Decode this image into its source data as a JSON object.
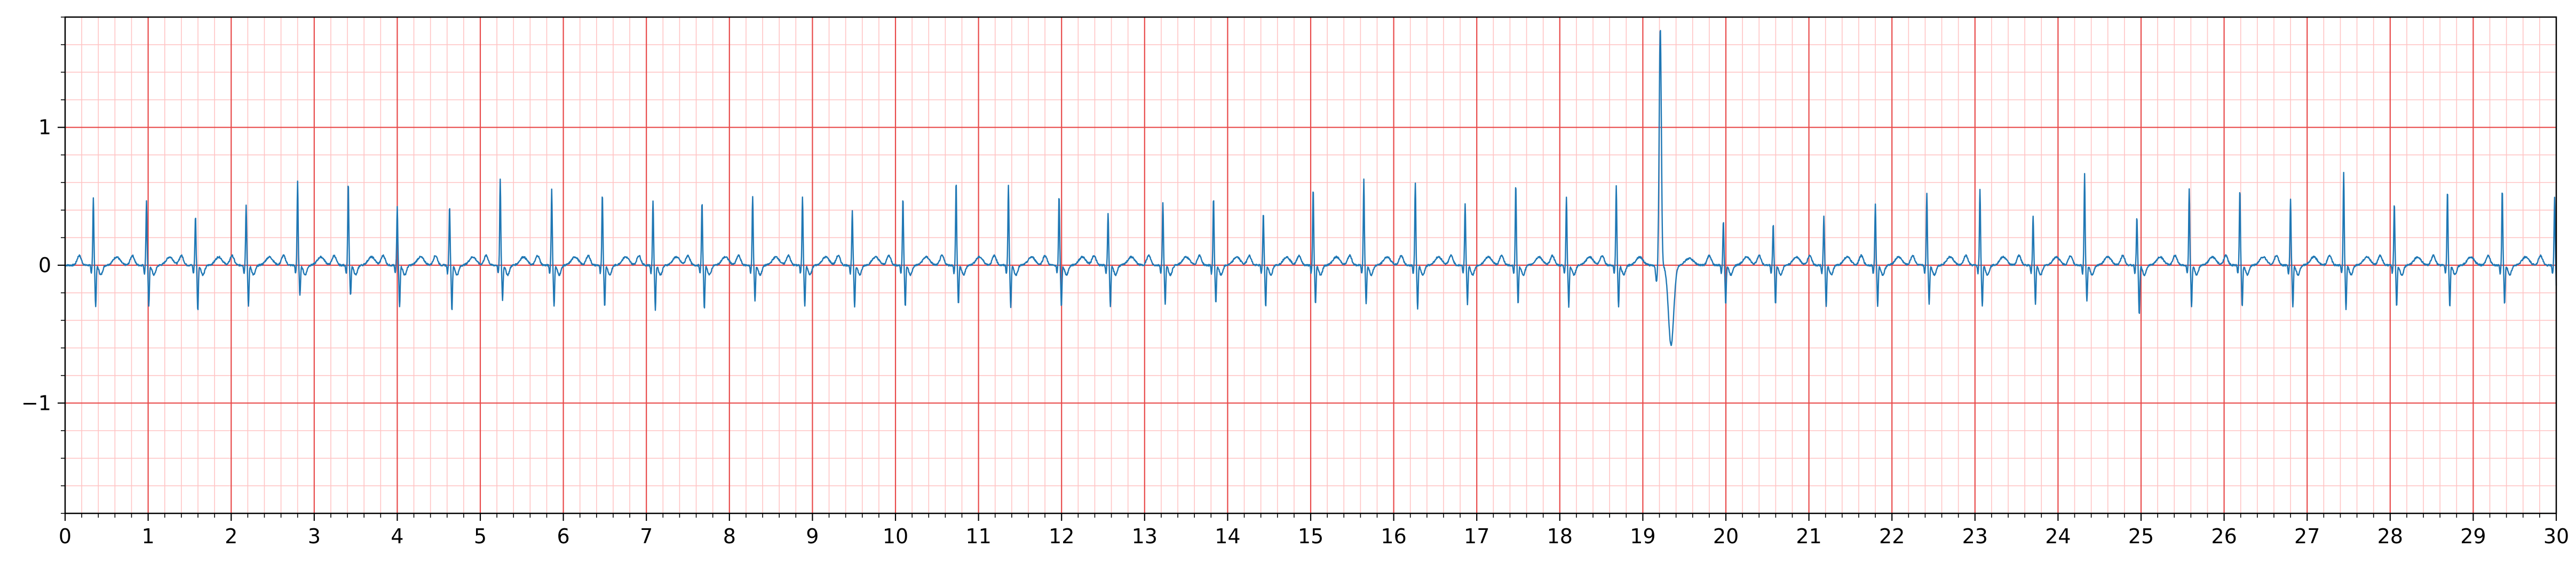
{
  "chart_data": {
    "type": "line",
    "title": "",
    "xlabel": "",
    "ylabel": "",
    "xlim": [
      0,
      30
    ],
    "ylim": [
      -1.8,
      1.8
    ],
    "grid": {
      "on": true,
      "major_color": "#e84a4a",
      "minor_color": "#ffc4c4",
      "x_major_step": 1,
      "x_minor_step": 0.2,
      "y_major_step": 1,
      "y_minor_step": 0.2
    },
    "x_ticks": [
      {
        "value": 0,
        "label": "0"
      },
      {
        "value": 1,
        "label": "1"
      },
      {
        "value": 2,
        "label": "2"
      },
      {
        "value": 3,
        "label": "3"
      },
      {
        "value": 4,
        "label": "4"
      },
      {
        "value": 5,
        "label": "5"
      },
      {
        "value": 6,
        "label": "6"
      },
      {
        "value": 7,
        "label": "7"
      },
      {
        "value": 8,
        "label": "8"
      },
      {
        "value": 9,
        "label": "9"
      },
      {
        "value": 10,
        "label": "10"
      },
      {
        "value": 11,
        "label": "11"
      },
      {
        "value": 12,
        "label": "12"
      },
      {
        "value": 13,
        "label": "13"
      },
      {
        "value": 14,
        "label": "14"
      },
      {
        "value": 15,
        "label": "15"
      },
      {
        "value": 16,
        "label": "16"
      },
      {
        "value": 17,
        "label": "17"
      },
      {
        "value": 18,
        "label": "18"
      },
      {
        "value": 19,
        "label": "19"
      },
      {
        "value": 20,
        "label": "20"
      },
      {
        "value": 21,
        "label": "21"
      },
      {
        "value": 22,
        "label": "22"
      },
      {
        "value": 23,
        "label": "23"
      },
      {
        "value": 24,
        "label": "24"
      },
      {
        "value": 25,
        "label": "25"
      },
      {
        "value": 26,
        "label": "26"
      },
      {
        "value": 27,
        "label": "27"
      },
      {
        "value": 28,
        "label": "28"
      },
      {
        "value": 29,
        "label": "29"
      },
      {
        "value": 30,
        "label": "30"
      }
    ],
    "y_ticks": [
      {
        "value": 1,
        "label": "1"
      },
      {
        "value": 0,
        "label": "0"
      },
      {
        "value": -1,
        "label": "−1"
      }
    ],
    "series": [
      {
        "color": "#1f77b4",
        "baseline": 0.0,
        "beats": [
          {
            "t": 0.34,
            "r": 0.49,
            "s": -0.3
          },
          {
            "t": 0.98,
            "r": 0.47,
            "s": -0.3
          },
          {
            "t": 1.57,
            "r": 0.36,
            "s": -0.33
          },
          {
            "t": 2.18,
            "r": 0.44,
            "s": -0.3
          },
          {
            "t": 2.8,
            "r": 0.61,
            "s": -0.22
          },
          {
            "t": 3.41,
            "r": 0.6,
            "s": -0.22
          },
          {
            "t": 4.0,
            "r": 0.42,
            "s": -0.3
          },
          {
            "t": 4.63,
            "r": 0.43,
            "s": -0.33
          },
          {
            "t": 5.24,
            "r": 0.62,
            "s": -0.25
          },
          {
            "t": 5.86,
            "r": 0.55,
            "s": -0.3
          },
          {
            "t": 6.47,
            "r": 0.52,
            "s": -0.3
          },
          {
            "t": 7.08,
            "r": 0.47,
            "s": -0.32
          },
          {
            "t": 7.67,
            "r": 0.46,
            "s": -0.32
          },
          {
            "t": 8.28,
            "r": 0.5,
            "s": -0.26
          },
          {
            "t": 8.88,
            "r": 0.5,
            "s": -0.3
          },
          {
            "t": 9.48,
            "r": 0.39,
            "s": -0.3
          },
          {
            "t": 10.09,
            "r": 0.49,
            "s": -0.3
          },
          {
            "t": 10.73,
            "r": 0.61,
            "s": -0.28
          },
          {
            "t": 11.36,
            "r": 0.58,
            "s": -0.3
          },
          {
            "t": 11.97,
            "r": 0.51,
            "s": -0.3
          },
          {
            "t": 12.56,
            "r": 0.38,
            "s": -0.3
          },
          {
            "t": 13.22,
            "r": 0.45,
            "s": -0.28
          },
          {
            "t": 13.83,
            "r": 0.49,
            "s": -0.28
          },
          {
            "t": 14.43,
            "r": 0.38,
            "s": -0.3
          },
          {
            "t": 15.03,
            "r": 0.56,
            "s": -0.28
          },
          {
            "t": 15.64,
            "r": 0.63,
            "s": -0.28
          },
          {
            "t": 16.26,
            "r": 0.6,
            "s": -0.32
          },
          {
            "t": 16.86,
            "r": 0.45,
            "s": -0.28
          },
          {
            "t": 17.47,
            "r": 0.59,
            "s": -0.28
          },
          {
            "t": 18.08,
            "r": 0.49,
            "s": -0.3
          },
          {
            "t": 18.68,
            "r": 0.58,
            "s": -0.3
          },
          {
            "t": 19.21,
            "r": 1.72,
            "s": -0.58,
            "wide": true
          },
          {
            "t": 19.97,
            "r": 0.32,
            "s": -0.28
          },
          {
            "t": 20.57,
            "r": 0.3,
            "s": -0.28
          },
          {
            "t": 21.18,
            "r": 0.35,
            "s": -0.3
          },
          {
            "t": 21.8,
            "r": 0.44,
            "s": -0.3
          },
          {
            "t": 22.42,
            "r": 0.52,
            "s": -0.28
          },
          {
            "t": 23.06,
            "r": 0.55,
            "s": -0.3
          },
          {
            "t": 23.7,
            "r": 0.36,
            "s": -0.28
          },
          {
            "t": 24.32,
            "r": 0.66,
            "s": -0.26
          },
          {
            "t": 24.95,
            "r": 0.35,
            "s": -0.36
          },
          {
            "t": 25.58,
            "r": 0.55,
            "s": -0.3
          },
          {
            "t": 26.19,
            "r": 0.55,
            "s": -0.3
          },
          {
            "t": 26.8,
            "r": 0.48,
            "s": -0.3
          },
          {
            "t": 27.44,
            "r": 0.67,
            "s": -0.32
          },
          {
            "t": 28.05,
            "r": 0.45,
            "s": -0.3
          },
          {
            "t": 28.69,
            "r": 0.54,
            "s": -0.3
          },
          {
            "t": 29.35,
            "r": 0.55,
            "s": -0.28
          },
          {
            "t": 29.98,
            "r": 0.49,
            "s": -0.3
          }
        ]
      }
    ]
  }
}
